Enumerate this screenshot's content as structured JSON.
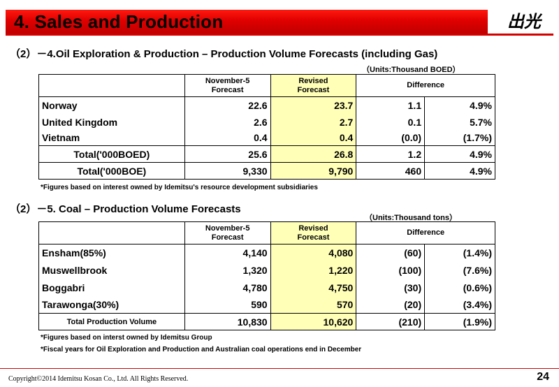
{
  "header": {
    "title": "4. Sales and Production",
    "logo_text": "出光"
  },
  "oil": {
    "heading": "（2）－4.Oil Exploration &  Production – Production Volume Forecasts (including Gas)",
    "units": "（Units:Thousand BOED）",
    "col_prev": [
      "November-5",
      "Forecast"
    ],
    "col_rev": [
      "Revised",
      "Forecast"
    ],
    "col_diff": "Difference",
    "rows": [
      {
        "label": "Norway",
        "prev": "22.6",
        "rev": "23.7",
        "diff": "1.1",
        "pct": "4.9%"
      },
      {
        "label": "United Kingdom",
        "prev": "2.6",
        "rev": "2.7",
        "diff": "0.1",
        "pct": "5.7%"
      },
      {
        "label": "Vietnam",
        "prev": "0.4",
        "rev": "0.4",
        "diff": "(0.0)",
        "pct": "(1.7%)"
      },
      {
        "label": "Total('000BOED)",
        "prev": "25.6",
        "rev": "26.8",
        "diff": "1.2",
        "pct": "4.9%"
      },
      {
        "label": "Total('000BOE)",
        "prev": "9,330",
        "rev": "9,790",
        "diff": "460",
        "pct": "4.9%"
      }
    ],
    "note": "*Figures based on interest owned by Idemitsu's resource development subsidiaries"
  },
  "coal": {
    "heading": "（2）－5. Coal – Production Volume Forecasts",
    "units": "（Units:Thousand tons）",
    "col_prev": [
      "November-5",
      "Forecast"
    ],
    "col_rev": [
      "Revised",
      "Forecast"
    ],
    "col_diff": "Difference",
    "rows": [
      {
        "label": "Ensham(85%)",
        "prev": "4,140",
        "rev": "4,080",
        "diff": "(60)",
        "pct": "(1.4%)"
      },
      {
        "label": "Muswellbrook",
        "prev": "1,320",
        "rev": "1,220",
        "diff": "(100)",
        "pct": "(7.6%)"
      },
      {
        "label": "Boggabri",
        "prev": "4,780",
        "rev": "4,750",
        "diff": "(30)",
        "pct": "(0.6%)"
      },
      {
        "label": "Tarawonga(30%)",
        "prev": "590",
        "rev": "570",
        "diff": "(20)",
        "pct": "(3.4%)"
      },
      {
        "label": "Total Production Volume",
        "prev": "10,830",
        "rev": "10,620",
        "diff": "(210)",
        "pct": "(1.9%)"
      }
    ],
    "notes": [
      "*Figures based on interst owned by Idemitsu Group",
      "*Fiscal years for Oil Exploration and Production and Australian coal operations end in December"
    ]
  },
  "footer": {
    "copyright": "Copyright©2014 Idemitsu Kosan Co., Ltd. All Rights Reserved.",
    "page": "24"
  }
}
